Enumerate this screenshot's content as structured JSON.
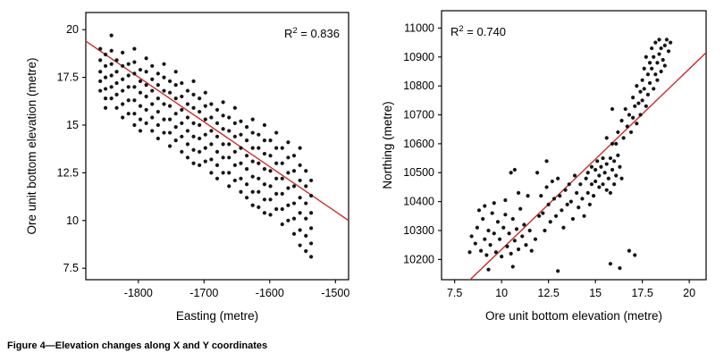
{
  "figure": {
    "caption": "Figure 4—Elevation changes along X and Y coordinates"
  },
  "colors": {
    "point": "#161616",
    "trend": "#cc2a2a",
    "frame": "#000000"
  },
  "chart_data": [
    {
      "id": "elevation-vs-easting",
      "type": "scatter",
      "xlabel": "Easting (metre)",
      "ylabel": "Ore unit bottom elevation (metre)",
      "xlim": [
        -1880,
        -1480
      ],
      "ylim": [
        6.9,
        20.9
      ],
      "xticks": [
        -1800,
        -1700,
        -1600,
        -1500
      ],
      "xtick_labels": [
        "-1800",
        "-1700",
        "-1600",
        "-1500"
      ],
      "yticks": [
        7.5,
        10,
        12.5,
        15,
        17.5,
        20
      ],
      "ytick_labels": [
        "7.5",
        "10",
        "12.5",
        "15",
        "17.5",
        "20"
      ],
      "r_squared": 0.836,
      "annotation": {
        "base": "R",
        "sup": "2",
        "rest": " = 0.836",
        "position": "top-right"
      },
      "trend": {
        "x1": -1880,
        "y1": 19.4,
        "x2": -1480,
        "y2": 10.0
      },
      "columns": [
        {
          "x": -1858,
          "ys": [
            19.0,
            18.4,
            17.8,
            17.3,
            16.8
          ]
        },
        {
          "x": -1850,
          "ys": [
            18.7,
            18.1,
            17.5,
            16.9,
            16.4,
            15.9
          ]
        },
        {
          "x": -1841,
          "ys": [
            19.7,
            18.9,
            18.2,
            17.6,
            17.0,
            16.4
          ]
        },
        {
          "x": -1833,
          "ys": [
            18.4,
            17.8,
            17.2,
            16.6,
            15.9
          ]
        },
        {
          "x": -1824,
          "ys": [
            18.8,
            18.1,
            17.4,
            16.8,
            16.1,
            15.4
          ]
        },
        {
          "x": -1815,
          "ys": [
            18.2,
            17.6,
            17.0,
            16.3,
            15.6
          ]
        },
        {
          "x": -1806,
          "ys": [
            19.0,
            18.3,
            17.7,
            17.0,
            16.3,
            15.6,
            15.0
          ]
        },
        {
          "x": -1797,
          "ys": [
            17.9,
            17.3,
            16.7,
            16.0,
            15.3,
            14.7
          ]
        },
        {
          "x": -1788,
          "ys": [
            18.5,
            17.8,
            17.1,
            16.5,
            15.8,
            15.1
          ]
        },
        {
          "x": -1779,
          "ys": [
            18.1,
            17.4,
            16.8,
            16.1,
            15.4,
            14.7
          ]
        },
        {
          "x": -1770,
          "ys": [
            17.7,
            17.1,
            16.4,
            15.7,
            15.0,
            14.3
          ]
        },
        {
          "x": -1761,
          "ys": [
            18.2,
            17.5,
            16.8,
            16.1,
            15.3,
            14.6
          ]
        },
        {
          "x": -1752,
          "ys": [
            17.3,
            16.7,
            16.0,
            15.3,
            14.6,
            13.9
          ]
        },
        {
          "x": -1743,
          "ys": [
            17.8,
            17.1,
            16.4,
            15.6,
            14.9,
            14.2
          ]
        },
        {
          "x": -1734,
          "ys": [
            17.2,
            16.5,
            15.8,
            15.1,
            14.4,
            13.6
          ]
        },
        {
          "x": -1725,
          "ys": [
            16.8,
            16.1,
            15.4,
            14.7,
            14.0,
            13.3
          ]
        },
        {
          "x": -1716,
          "ys": [
            17.3,
            16.6,
            15.9,
            15.1,
            14.4,
            13.7,
            13.0
          ]
        },
        {
          "x": -1707,
          "ys": [
            16.4,
            15.7,
            15.0,
            14.3,
            13.6,
            12.9
          ]
        },
        {
          "x": -1698,
          "ys": [
            16.7,
            16.0,
            15.3,
            14.5,
            13.8,
            13.1
          ]
        },
        {
          "x": -1689,
          "ys": [
            16.1,
            15.4,
            14.7,
            14.0,
            13.2,
            12.5
          ]
        },
        {
          "x": -1680,
          "ys": [
            15.8,
            15.1,
            14.4,
            13.6,
            12.9,
            12.2
          ]
        },
        {
          "x": -1671,
          "ys": [
            16.2,
            15.5,
            14.8,
            14.0,
            13.3,
            12.5
          ]
        },
        {
          "x": -1662,
          "ys": [
            15.4,
            14.7,
            14.0,
            13.3,
            12.5,
            11.8
          ]
        },
        {
          "x": -1653,
          "ys": [
            15.9,
            15.1,
            14.4,
            13.6,
            12.9,
            12.1
          ]
        },
        {
          "x": -1644,
          "ys": [
            15.2,
            14.5,
            13.8,
            13.0,
            12.2,
            11.5
          ]
        },
        {
          "x": -1635,
          "ys": [
            14.9,
            14.2,
            13.4,
            12.7,
            11.9,
            11.2
          ]
        },
        {
          "x": -1626,
          "ys": [
            15.3,
            14.6,
            13.8,
            13.1,
            12.3,
            11.5,
            10.8
          ]
        },
        {
          "x": -1617,
          "ys": [
            14.5,
            13.8,
            13.0,
            12.2,
            11.5,
            10.7
          ]
        },
        {
          "x": -1608,
          "ys": [
            15.0,
            14.2,
            13.5,
            12.7,
            11.9,
            11.1,
            10.4
          ]
        },
        {
          "x": -1599,
          "ys": [
            14.2,
            13.4,
            12.6,
            11.8,
            11.1,
            10.3
          ]
        },
        {
          "x": -1590,
          "ys": [
            14.6,
            13.8,
            13.0,
            12.2,
            11.4,
            10.6
          ]
        },
        {
          "x": -1581,
          "ys": [
            13.8,
            13.0,
            12.2,
            11.4,
            10.6,
            9.8
          ]
        },
        {
          "x": -1572,
          "ys": [
            14.1,
            13.3,
            12.5,
            11.7,
            10.8,
            10.0
          ]
        },
        {
          "x": -1563,
          "ys": [
            13.4,
            12.6,
            11.8,
            10.9,
            10.1,
            9.3
          ]
        },
        {
          "x": -1554,
          "ys": [
            13.8,
            12.9,
            12.1,
            11.2,
            10.4,
            9.5,
            8.7
          ]
        },
        {
          "x": -1545,
          "ys": [
            12.6,
            11.8,
            10.9,
            10.1,
            9.2,
            8.4
          ]
        },
        {
          "x": -1537,
          "ys": [
            12.1,
            11.3,
            10.4,
            9.6,
            8.8,
            8.1
          ]
        }
      ]
    },
    {
      "id": "northing-vs-elevation",
      "type": "scatter",
      "xlabel": "Ore unit bottom elevation (metre)",
      "ylabel": "Northing (metre)",
      "xlim": [
        6.8,
        20.9
      ],
      "ylim": [
        10130,
        11060
      ],
      "xticks": [
        7.5,
        10,
        12.5,
        15,
        17.5,
        20
      ],
      "xtick_labels": [
        "7.5",
        "10",
        "12.5",
        "15",
        "17.5",
        "20"
      ],
      "yticks": [
        10200,
        10300,
        10400,
        10500,
        10600,
        10700,
        10800,
        10900,
        11000
      ],
      "ytick_labels": [
        "10200",
        "10300",
        "10400",
        "10500",
        "10600",
        "10700",
        "10800",
        "10900",
        "11000"
      ],
      "r_squared": 0.74,
      "annotation": {
        "base": "R",
        "sup": "2",
        "rest": " = 0.740",
        "position": "top-left"
      },
      "trend": {
        "x1": 6.8,
        "y1": 10035,
        "x2": 20.9,
        "y2": 10915
      },
      "points": [
        [
          8.3,
          10225
        ],
        [
          8.4,
          10280
        ],
        [
          8.6,
          10255
        ],
        [
          8.7,
          10310
        ],
        [
          8.8,
          10370
        ],
        [
          8.9,
          10230
        ],
        [
          9.0,
          10340
        ],
        [
          9.1,
          10270
        ],
        [
          9.1,
          10385
        ],
        [
          9.2,
          10215
        ],
        [
          9.3,
          10165
        ],
        [
          9.3,
          10300
        ],
        [
          9.4,
          10250
        ],
        [
          9.5,
          10360
        ],
        [
          9.6,
          10290
        ],
        [
          9.6,
          10395
        ],
        [
          9.7,
          10225
        ],
        [
          9.8,
          10330
        ],
        [
          9.9,
          10270
        ],
        [
          10.0,
          10210
        ],
        [
          10.1,
          10310
        ],
        [
          10.2,
          10355
        ],
        [
          10.2,
          10405
        ],
        [
          10.3,
          10245
        ],
        [
          10.4,
          10290
        ],
        [
          10.5,
          10220
        ],
        [
          10.5,
          10500
        ],
        [
          10.6,
          10175
        ],
        [
          10.6,
          10340
        ],
        [
          10.7,
          10265
        ],
        [
          10.7,
          10510
        ],
        [
          10.8,
          10305
        ],
        [
          10.9,
          10235
        ],
        [
          10.9,
          10430
        ],
        [
          11.0,
          10375
        ],
        [
          11.1,
          10280
        ],
        [
          11.2,
          10320
        ],
        [
          11.3,
          10250
        ],
        [
          11.4,
          10420
        ],
        [
          11.5,
          10300
        ],
        [
          11.6,
          10230
        ],
        [
          11.8,
          10270
        ],
        [
          11.9,
          10500
        ],
        [
          12.0,
          10350
        ],
        [
          12.1,
          10420
        ],
        [
          12.2,
          10360
        ],
        [
          12.3,
          10300
        ],
        [
          12.4,
          10450
        ],
        [
          12.4,
          10540
        ],
        [
          12.5,
          10390
        ],
        [
          12.6,
          10330
        ],
        [
          12.7,
          10470
        ],
        [
          12.8,
          10410
        ],
        [
          12.9,
          10350
        ],
        [
          13.0,
          10160
        ],
        [
          13.0,
          10480
        ],
        [
          13.1,
          10420
        ],
        [
          13.2,
          10370
        ],
        [
          13.3,
          10310
        ],
        [
          13.4,
          10440
        ],
        [
          13.5,
          10390
        ],
        [
          13.6,
          10460
        ],
        [
          13.7,
          10400
        ],
        [
          13.8,
          10340
        ],
        [
          13.9,
          10490
        ],
        [
          14.0,
          10430
        ],
        [
          14.1,
          10380
        ],
        [
          14.2,
          10460
        ],
        [
          14.3,
          10410
        ],
        [
          14.4,
          10350
        ],
        [
          14.5,
          10480
        ],
        [
          14.6,
          10430
        ],
        [
          14.7,
          10390
        ],
        [
          14.8,
          10460
        ],
        [
          14.9,
          10420
        ],
        [
          14.6,
          10500
        ],
        [
          14.8,
          10520
        ],
        [
          15.0,
          10470
        ],
        [
          15.0,
          10510
        ],
        [
          15.1,
          10540
        ],
        [
          15.2,
          10450
        ],
        [
          15.2,
          10490
        ],
        [
          15.3,
          10520
        ],
        [
          15.4,
          10460
        ],
        [
          15.4,
          10550
        ],
        [
          15.5,
          10500
        ],
        [
          15.6,
          10440
        ],
        [
          15.6,
          10530
        ],
        [
          15.7,
          10480
        ],
        [
          15.8,
          10430
        ],
        [
          15.8,
          10550
        ],
        [
          15.9,
          10510
        ],
        [
          16.0,
          10460
        ],
        [
          16.0,
          10540
        ],
        [
          16.1,
          10490
        ],
        [
          16.2,
          10560
        ],
        [
          16.3,
          10520
        ],
        [
          16.4,
          10480
        ],
        [
          15.6,
          10620
        ],
        [
          15.9,
          10600
        ],
        [
          15.9,
          10720
        ],
        [
          16.1,
          10600
        ],
        [
          15.8,
          10185
        ],
        [
          16.3,
          10170
        ],
        [
          16.8,
          10230
        ],
        [
          17.1,
          10215
        ],
        [
          16.2,
          10640
        ],
        [
          16.4,
          10680
        ],
        [
          16.5,
          10620
        ],
        [
          16.6,
          10720
        ],
        [
          16.7,
          10660
        ],
        [
          16.8,
          10700
        ],
        [
          16.9,
          10640
        ],
        [
          17.0,
          10690
        ],
        [
          17.0,
          10760
        ],
        [
          17.1,
          10730
        ],
        [
          17.2,
          10670
        ],
        [
          17.2,
          10800
        ],
        [
          17.3,
          10740
        ],
        [
          17.4,
          10700
        ],
        [
          17.4,
          10780
        ],
        [
          17.5,
          10750
        ],
        [
          17.5,
          10820
        ],
        [
          17.6,
          10790
        ],
        [
          17.6,
          10860
        ],
        [
          17.7,
          10730
        ],
        [
          17.7,
          10900
        ],
        [
          17.8,
          10770
        ],
        [
          17.8,
          10840
        ],
        [
          17.9,
          10810
        ],
        [
          17.9,
          10880
        ],
        [
          18.0,
          10860
        ],
        [
          18.0,
          10930
        ],
        [
          18.1,
          10790
        ],
        [
          18.1,
          10900
        ],
        [
          18.2,
          10840
        ],
        [
          18.2,
          10950
        ],
        [
          18.3,
          10820
        ],
        [
          18.3,
          10880
        ],
        [
          18.4,
          10910
        ],
        [
          18.4,
          10960
        ],
        [
          18.5,
          10850
        ],
        [
          18.5,
          10930
        ],
        [
          18.6,
          10890
        ],
        [
          18.7,
          10870
        ],
        [
          18.7,
          10940
        ],
        [
          18.8,
          10960
        ],
        [
          18.9,
          10920
        ],
        [
          19.0,
          10950
        ]
      ]
    }
  ]
}
